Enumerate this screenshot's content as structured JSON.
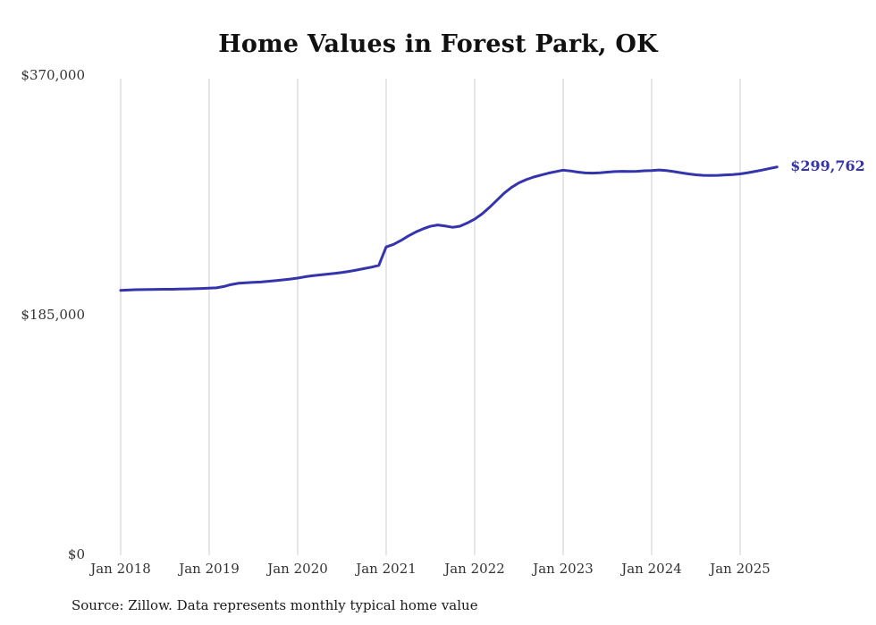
{
  "page": {
    "background": "#ffffff"
  },
  "chart_data": {
    "type": "line",
    "title": "Home Values in Forest Park, OK",
    "series_name": "Typical home value",
    "source": "Source: Zillow. Data represents monthly typical home value",
    "end_label": "$299,762",
    "end_value": 299762,
    "line_color": "#3534ac",
    "grid_color": "#cccccc",
    "label_color": "#333333",
    "grid": "vertical-only",
    "legend": "none",
    "ylim": [
      0,
      370000
    ],
    "y_ticks": [
      {
        "label": "$370,000",
        "value": 370000
      },
      {
        "label": "$185,000",
        "value": 185000
      },
      {
        "label": "$0",
        "value": 0
      }
    ],
    "x_tick_labels": [
      "Jan 2018",
      "Jan 2019",
      "Jan 2020",
      "Jan 2021",
      "Jan 2022",
      "Jan 2023",
      "Jan 2024",
      "Jan 2025"
    ],
    "x_start": "2018-01",
    "x_end": "2025-06",
    "months": [
      "2018-01",
      "2018-02",
      "2018-03",
      "2018-04",
      "2018-05",
      "2018-06",
      "2018-07",
      "2018-08",
      "2018-09",
      "2018-10",
      "2018-11",
      "2018-12",
      "2019-01",
      "2019-02",
      "2019-03",
      "2019-04",
      "2019-05",
      "2019-06",
      "2019-07",
      "2019-08",
      "2019-09",
      "2019-10",
      "2019-11",
      "2019-12",
      "2020-01",
      "2020-02",
      "2020-03",
      "2020-04",
      "2020-05",
      "2020-06",
      "2020-07",
      "2020-08",
      "2020-09",
      "2020-10",
      "2020-11",
      "2020-12",
      "2021-01",
      "2021-02",
      "2021-03",
      "2021-04",
      "2021-05",
      "2021-06",
      "2021-07",
      "2021-08",
      "2021-09",
      "2021-10",
      "2021-11",
      "2021-12",
      "2022-01",
      "2022-02",
      "2022-03",
      "2022-04",
      "2022-05",
      "2022-06",
      "2022-07",
      "2022-08",
      "2022-09",
      "2022-10",
      "2022-11",
      "2022-12",
      "2023-01",
      "2023-02",
      "2023-03",
      "2023-04",
      "2023-05",
      "2023-06",
      "2023-07",
      "2023-08",
      "2023-09",
      "2023-10",
      "2023-11",
      "2023-12",
      "2024-01",
      "2024-02",
      "2024-03",
      "2024-04",
      "2024-05",
      "2024-06",
      "2024-07",
      "2024-08",
      "2024-09",
      "2024-10",
      "2024-11",
      "2024-12",
      "2025-01",
      "2025-02",
      "2025-03",
      "2025-04",
      "2025-05",
      "2025-06"
    ],
    "values": [
      204500,
      204800,
      205000,
      205100,
      205200,
      205300,
      205400,
      205400,
      205500,
      205600,
      205800,
      206000,
      206200,
      206500,
      207500,
      209000,
      210000,
      210400,
      210700,
      211000,
      211500,
      212000,
      212600,
      213200,
      214000,
      215000,
      215800,
      216400,
      217000,
      217600,
      218300,
      219200,
      220200,
      221300,
      222400,
      223800,
      238000,
      240000,
      243000,
      246500,
      249500,
      252000,
      254000,
      255000,
      254200,
      253200,
      254000,
      256500,
      259500,
      263500,
      268500,
      274000,
      279500,
      284000,
      287500,
      290000,
      292000,
      293500,
      295000,
      296200,
      297300,
      296700,
      295800,
      295200,
      295000,
      295300,
      295800,
      296200,
      296400,
      296300,
      296400,
      296800,
      297000,
      297400,
      297000,
      296200,
      295300,
      294400,
      293700,
      293300,
      293200,
      293300,
      293600,
      293900,
      294400,
      295300,
      296300,
      297400,
      298600,
      299762
    ]
  }
}
